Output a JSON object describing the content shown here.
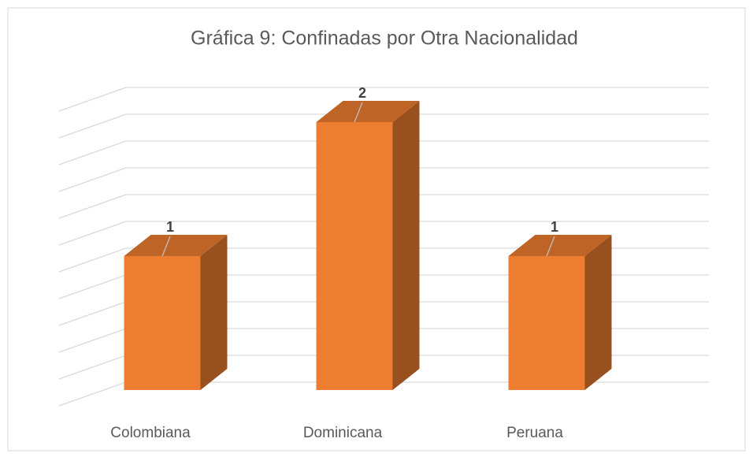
{
  "chart_data": {
    "type": "bar",
    "title": "Gráfica 9: Confinadas por Otra Nacionalidad",
    "categories": [
      "Colombiana",
      "Dominicana",
      "Peruana"
    ],
    "values": [
      1,
      2,
      1
    ],
    "color": "#ed7d31",
    "ylim": [
      0,
      2.2
    ],
    "yticks": [
      0,
      0.2,
      0.4,
      0.6,
      0.8,
      1,
      1.2,
      1.4,
      1.6,
      1.8,
      2,
      2.2
    ],
    "grid": true
  }
}
